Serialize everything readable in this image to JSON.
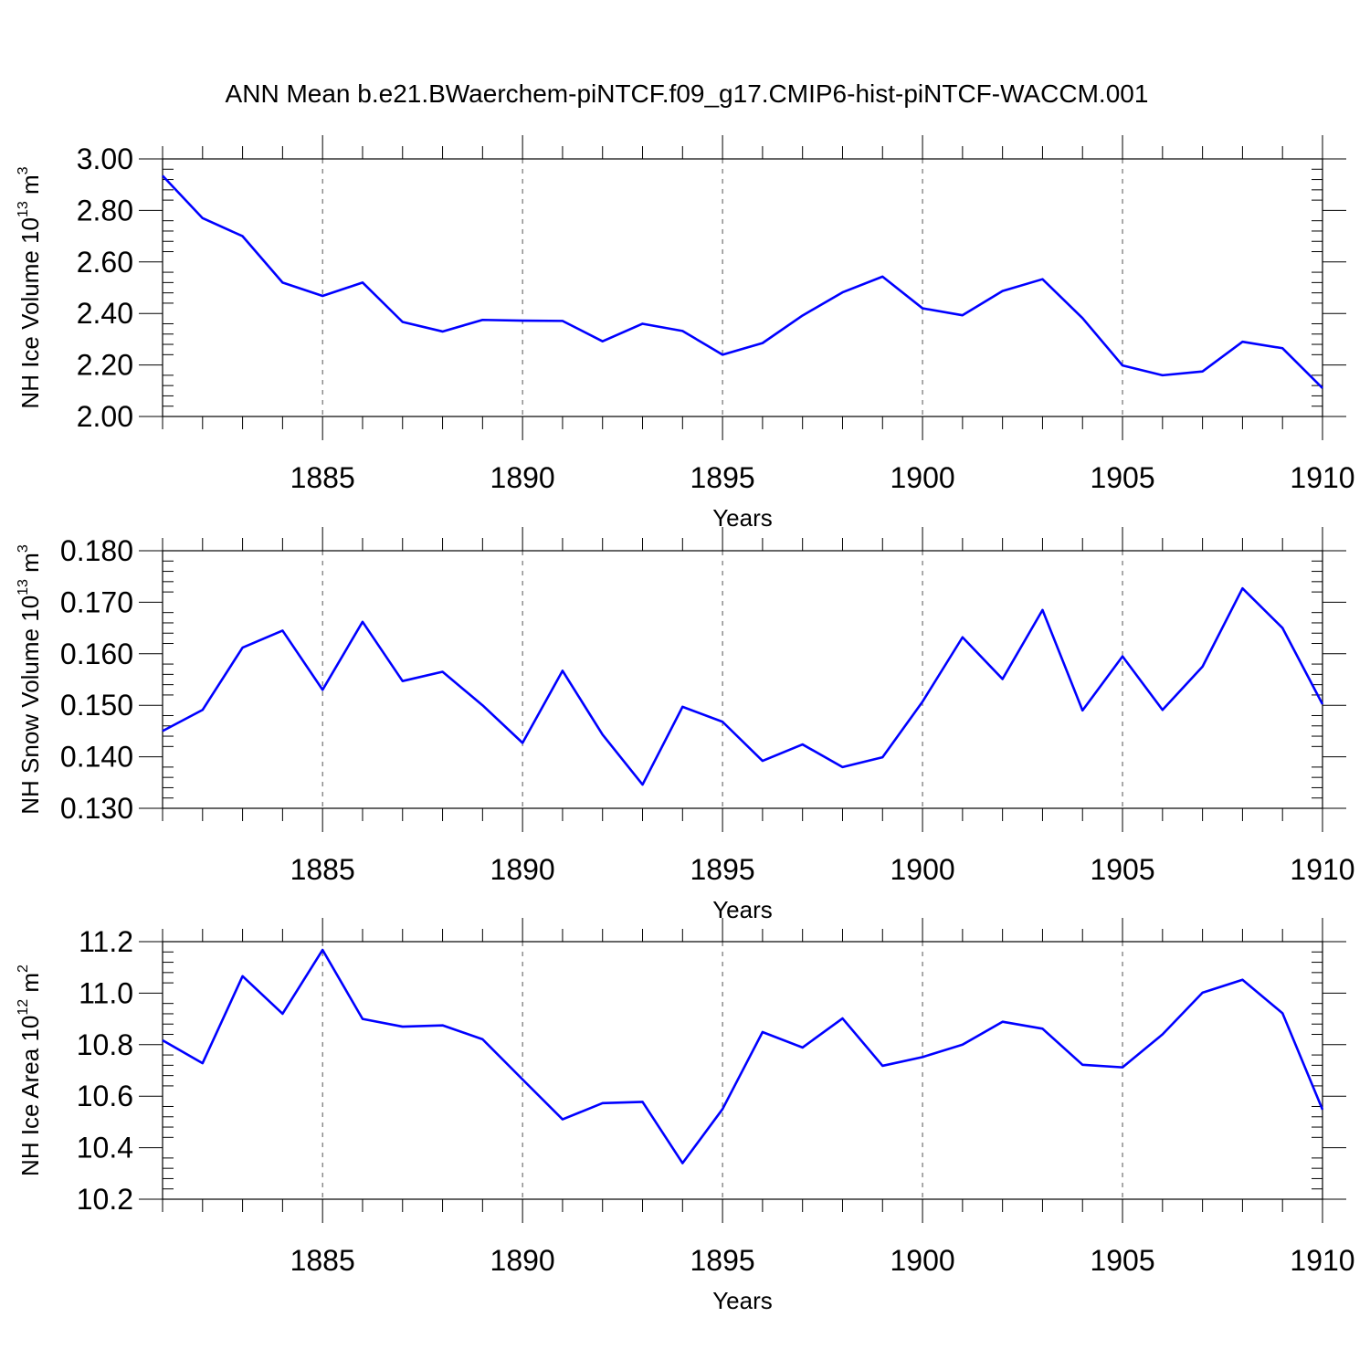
{
  "title": "ANN Mean b.e21.BWaerchem-piNTCF.f09_g17.CMIP6-hist-piNTCF-WACCM.001",
  "colors": {
    "line": "#0000ff",
    "axes": "#000000",
    "grid": "#555555"
  },
  "chart_data": [
    {
      "type": "line",
      "ylabel": "NH Ice Volume 10",
      "ylabel_sup": "13",
      "ylabel_unit": " m",
      "ylabel_unit_sup": "3",
      "xlabel": "Years",
      "xlim": [
        1881,
        1910
      ],
      "ylim": [
        2.0,
        3.0
      ],
      "xticks": [
        1885,
        1890,
        1895,
        1900,
        1905,
        1910
      ],
      "yticks": [
        2.0,
        2.2,
        2.4,
        2.6,
        2.8,
        3.0
      ],
      "ytick_labels": [
        "2.00",
        "2.20",
        "2.40",
        "2.60",
        "2.80",
        "3.00"
      ],
      "grid": "vertical dashed at major x ticks",
      "x": [
        1881,
        1882,
        1883,
        1884,
        1885,
        1886,
        1887,
        1888,
        1889,
        1890,
        1891,
        1892,
        1893,
        1894,
        1895,
        1896,
        1897,
        1898,
        1899,
        1900,
        1901,
        1902,
        1903,
        1904,
        1905,
        1906,
        1907,
        1908,
        1909,
        1910
      ],
      "series": [
        {
          "values": [
            2.935,
            2.77,
            2.7,
            2.52,
            2.468,
            2.52,
            2.367,
            2.33,
            2.375,
            2.372,
            2.371,
            2.292,
            2.36,
            2.332,
            2.24,
            2.285,
            2.392,
            2.482,
            2.543,
            2.42,
            2.393,
            2.487,
            2.533,
            2.382,
            2.198,
            2.16,
            2.175,
            2.29,
            2.265,
            2.11
          ]
        }
      ]
    },
    {
      "type": "line",
      "ylabel": "NH Snow Volume 10",
      "ylabel_sup": "13",
      "ylabel_unit": " m",
      "ylabel_unit_sup": "3",
      "xlabel": "Years",
      "xlim": [
        1881,
        1910
      ],
      "ylim": [
        0.13,
        0.18
      ],
      "xticks": [
        1885,
        1890,
        1895,
        1900,
        1905,
        1910
      ],
      "yticks": [
        0.13,
        0.14,
        0.15,
        0.16,
        0.17,
        0.18
      ],
      "ytick_labels": [
        "0.130",
        "0.140",
        "0.150",
        "0.160",
        "0.170",
        "0.180"
      ],
      "grid": "vertical dashed at major x ticks",
      "x": [
        1881,
        1882,
        1883,
        1884,
        1885,
        1886,
        1887,
        1888,
        1889,
        1890,
        1891,
        1892,
        1893,
        1894,
        1895,
        1896,
        1897,
        1898,
        1899,
        1900,
        1901,
        1902,
        1903,
        1904,
        1905,
        1906,
        1907,
        1908,
        1909,
        1910
      ],
      "series": [
        {
          "values": [
            0.145,
            0.1491,
            0.1612,
            0.1645,
            0.153,
            0.1662,
            0.1547,
            0.1565,
            0.15,
            0.1427,
            0.1567,
            0.1443,
            0.1346,
            0.1497,
            0.1468,
            0.1392,
            0.1424,
            0.138,
            0.1399,
            0.1507,
            0.1632,
            0.1551,
            0.1685,
            0.149,
            0.1595,
            0.1491,
            0.1575,
            0.1727,
            0.165,
            0.1502
          ]
        }
      ]
    },
    {
      "type": "line",
      "ylabel": "NH Ice Area 10",
      "ylabel_sup": "12",
      "ylabel_unit": " m",
      "ylabel_unit_sup": "2",
      "xlabel": "Years",
      "xlim": [
        1881,
        1910
      ],
      "ylim": [
        10.2,
        11.2
      ],
      "xticks": [
        1885,
        1890,
        1895,
        1900,
        1905,
        1910
      ],
      "yticks": [
        10.2,
        10.4,
        10.6,
        10.8,
        11.0,
        11.2
      ],
      "ytick_labels": [
        "10.2",
        "10.4",
        "10.6",
        "10.8",
        "11.0",
        "11.2"
      ],
      "grid": "vertical dashed at major x ticks",
      "x": [
        1881,
        1882,
        1883,
        1884,
        1885,
        1886,
        1887,
        1888,
        1889,
        1890,
        1891,
        1892,
        1893,
        1894,
        1895,
        1896,
        1897,
        1898,
        1899,
        1900,
        1901,
        1902,
        1903,
        1904,
        1905,
        1906,
        1907,
        1908,
        1909,
        1910
      ],
      "series": [
        {
          "values": [
            10.817,
            10.728,
            11.066,
            10.92,
            11.168,
            10.9,
            10.87,
            10.875,
            10.821,
            10.665,
            10.51,
            10.573,
            10.578,
            10.34,
            10.55,
            10.849,
            10.789,
            10.902,
            10.718,
            10.752,
            10.8,
            10.889,
            10.862,
            10.722,
            10.712,
            10.84,
            11.002,
            11.052,
            10.922,
            10.548
          ]
        }
      ]
    }
  ]
}
